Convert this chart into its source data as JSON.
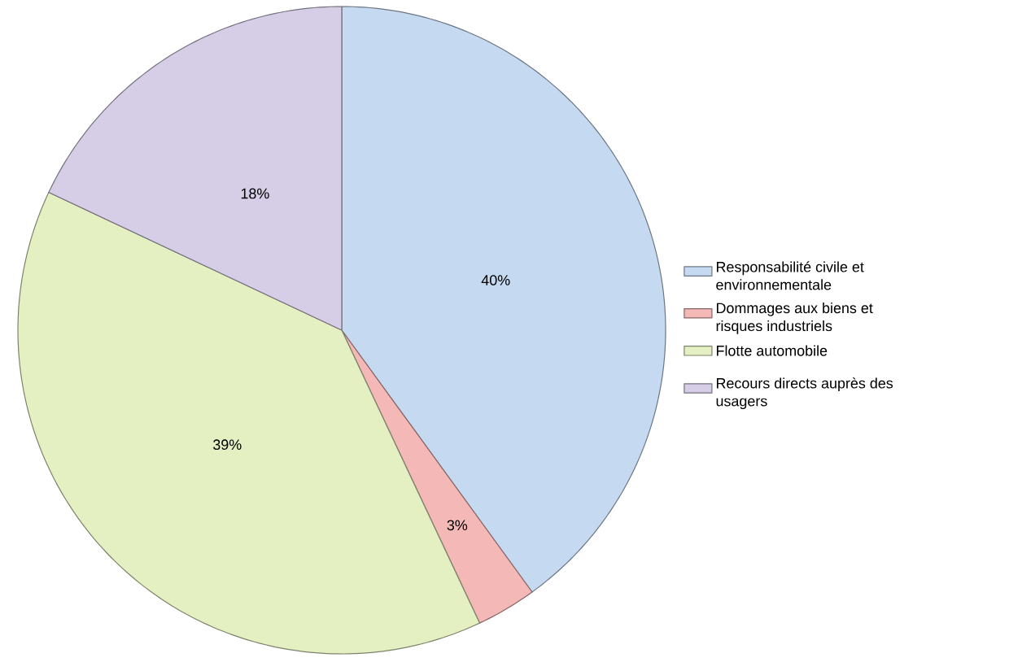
{
  "chart_data": {
    "type": "pie",
    "categories": [
      "Responsabilité civile et environnementale",
      "Dommages aux biens et risques industriels",
      "Flotte automobile",
      "Recours directs auprès des usagers"
    ],
    "values": [
      40,
      3,
      39,
      18
    ],
    "value_labels": [
      "40%",
      "3%",
      "39%",
      "18%"
    ],
    "colors": [
      "#c5d9f1",
      "#f4b8b6",
      "#e4efc2",
      "#d6cde7"
    ],
    "legend": "right"
  }
}
